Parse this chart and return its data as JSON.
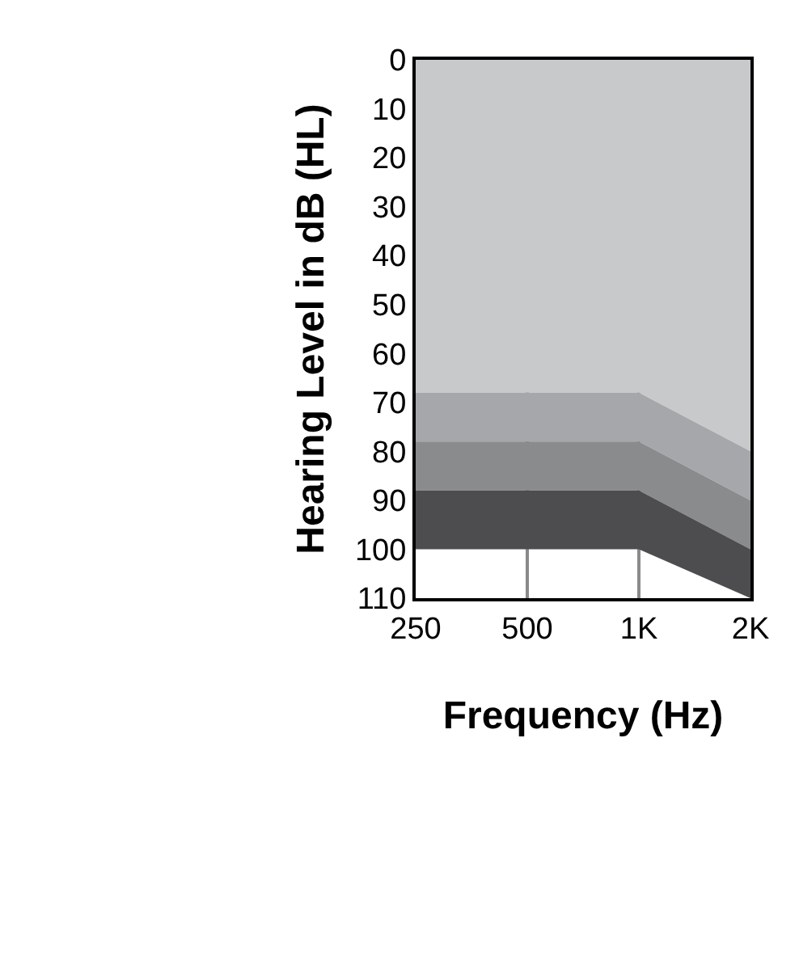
{
  "chart_data": {
    "type": "area",
    "stacked": true,
    "xlabel": "Frequency (Hz)",
    "ylabel": "Hearing Level in dB (HL)",
    "categories": [
      "250",
      "500",
      "1K",
      "2K"
    ],
    "series": [
      {
        "color": "#c8c9cb",
        "values": [
          68,
          68,
          68,
          80
        ]
      },
      {
        "color": "#a6a7aa",
        "values": [
          10,
          10,
          10,
          10
        ]
      },
      {
        "color": "#8a8b8d",
        "values": [
          10,
          10,
          10,
          10
        ]
      },
      {
        "color": "#4d4d4f",
        "values": [
          12,
          12,
          12,
          10
        ]
      }
    ],
    "ylim": [
      110,
      0
    ],
    "yticks": [
      0,
      10,
      20,
      30,
      40,
      50,
      60,
      70,
      80,
      90,
      100,
      110
    ],
    "grid": "x",
    "marker": "none"
  }
}
